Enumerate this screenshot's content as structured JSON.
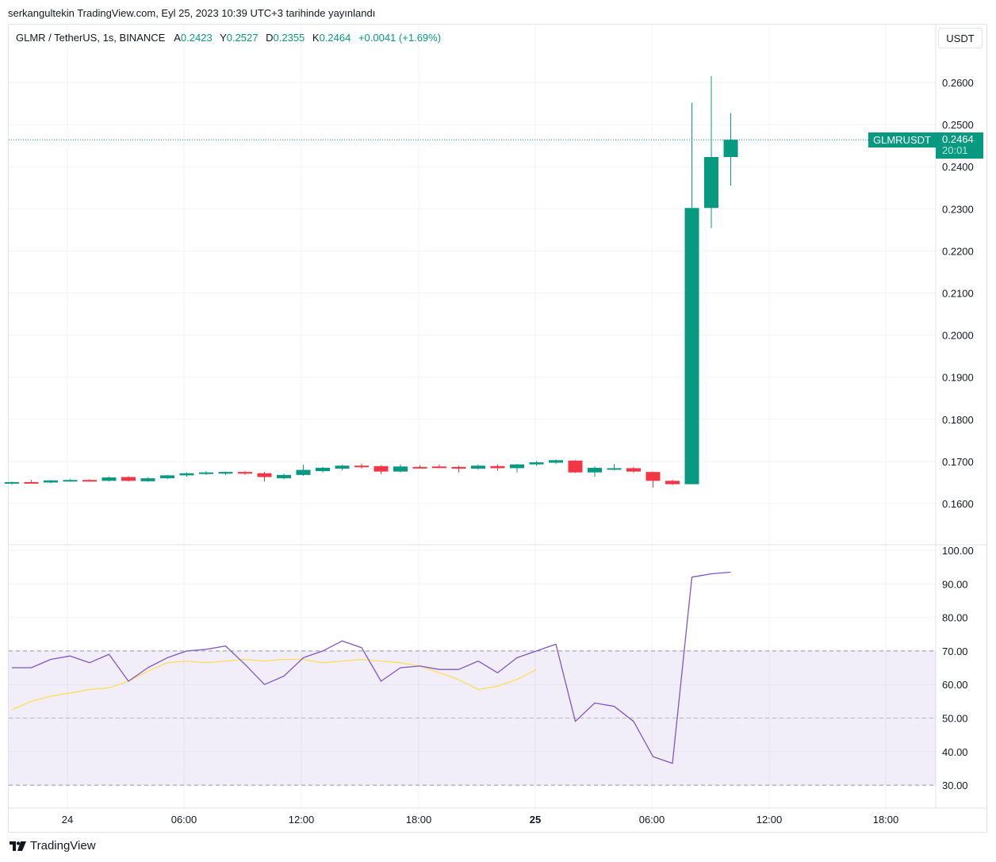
{
  "publish_line": "serkangultekin TradingView.com, Eyl 25, 2023 10:39 UTC+3 tarihinde yayınlandı",
  "legend": {
    "symbol": "GLMR / TetherUS, 1s, BINANCE",
    "open_label": "A",
    "open": "0.2423",
    "high_label": "Y",
    "high": "0.2527",
    "low_label": "D",
    "low": "0.2355",
    "close_label": "K",
    "close": "0.2464",
    "change": "+0.0041 (+1.69%)"
  },
  "currency_button": "USDT",
  "last_price": {
    "ticker": "GLMRUSDT",
    "price": "0.2464",
    "countdown": "20:01"
  },
  "brand": "TradingView",
  "colors": {
    "up": "#089981",
    "down": "#f23645",
    "rsi": "#7e57c2",
    "rsi_ma": "#fddd5b",
    "rsi_band": "#7e57c2"
  },
  "chart_data": [
    {
      "type": "candlestick",
      "x_tick_labels": [
        "24",
        "06:00",
        "12:00",
        "18:00",
        "25",
        "06:00",
        "12:00",
        "18:00"
      ],
      "y_tick_labels": [
        "0.2600",
        "0.2500",
        "0.2400",
        "0.2300",
        "0.2200",
        "0.2100",
        "0.2000",
        "0.1900",
        "0.1800",
        "0.1700",
        "0.1600"
      ],
      "ylim": [
        0.1545,
        0.2705
      ],
      "grid": true,
      "last_price": 0.2464,
      "candles": [
        {
          "o": 0.1648,
          "h": 0.1652,
          "l": 0.1645,
          "c": 0.1651
        },
        {
          "o": 0.1651,
          "h": 0.1656,
          "l": 0.1648,
          "c": 0.165
        },
        {
          "o": 0.165,
          "h": 0.1656,
          "l": 0.1648,
          "c": 0.1655
        },
        {
          "o": 0.1654,
          "h": 0.1658,
          "l": 0.1652,
          "c": 0.1656
        },
        {
          "o": 0.1656,
          "h": 0.1658,
          "l": 0.1652,
          "c": 0.1654
        },
        {
          "o": 0.1654,
          "h": 0.1664,
          "l": 0.1652,
          "c": 0.1662
        },
        {
          "o": 0.1663,
          "h": 0.1665,
          "l": 0.1652,
          "c": 0.1654
        },
        {
          "o": 0.1653,
          "h": 0.1662,
          "l": 0.1652,
          "c": 0.166
        },
        {
          "o": 0.166,
          "h": 0.1668,
          "l": 0.1658,
          "c": 0.1667
        },
        {
          "o": 0.1667,
          "h": 0.1674,
          "l": 0.1664,
          "c": 0.1672
        },
        {
          "o": 0.1672,
          "h": 0.1677,
          "l": 0.1668,
          "c": 0.1674
        },
        {
          "o": 0.1671,
          "h": 0.1676,
          "l": 0.1668,
          "c": 0.1675
        },
        {
          "o": 0.1675,
          "h": 0.1677,
          "l": 0.1668,
          "c": 0.1671
        },
        {
          "o": 0.1672,
          "h": 0.1675,
          "l": 0.1652,
          "c": 0.1663
        },
        {
          "o": 0.166,
          "h": 0.1671,
          "l": 0.1658,
          "c": 0.1668
        },
        {
          "o": 0.1668,
          "h": 0.1692,
          "l": 0.1666,
          "c": 0.168
        },
        {
          "o": 0.1677,
          "h": 0.1687,
          "l": 0.1674,
          "c": 0.1685
        },
        {
          "o": 0.1683,
          "h": 0.1692,
          "l": 0.1679,
          "c": 0.169
        },
        {
          "o": 0.169,
          "h": 0.1695,
          "l": 0.1683,
          "c": 0.1688
        },
        {
          "o": 0.1689,
          "h": 0.1691,
          "l": 0.167,
          "c": 0.1676
        },
        {
          "o": 0.1676,
          "h": 0.1693,
          "l": 0.1674,
          "c": 0.1688
        },
        {
          "o": 0.1687,
          "h": 0.1691,
          "l": 0.1684,
          "c": 0.1686
        },
        {
          "o": 0.1688,
          "h": 0.1693,
          "l": 0.1684,
          "c": 0.1685
        },
        {
          "o": 0.1687,
          "h": 0.169,
          "l": 0.1674,
          "c": 0.1683
        },
        {
          "o": 0.1683,
          "h": 0.1693,
          "l": 0.168,
          "c": 0.169
        },
        {
          "o": 0.1689,
          "h": 0.1693,
          "l": 0.1678,
          "c": 0.1684
        },
        {
          "o": 0.1684,
          "h": 0.1694,
          "l": 0.1674,
          "c": 0.1693
        },
        {
          "o": 0.1693,
          "h": 0.1701,
          "l": 0.169,
          "c": 0.1698
        },
        {
          "o": 0.1697,
          "h": 0.1705,
          "l": 0.1694,
          "c": 0.1703
        },
        {
          "o": 0.1702,
          "h": 0.1703,
          "l": 0.1673,
          "c": 0.1674
        },
        {
          "o": 0.1674,
          "h": 0.1688,
          "l": 0.1664,
          "c": 0.1685
        },
        {
          "o": 0.1683,
          "h": 0.1694,
          "l": 0.1679,
          "c": 0.1684
        },
        {
          "o": 0.1684,
          "h": 0.1687,
          "l": 0.1673,
          "c": 0.1676
        },
        {
          "o": 0.1675,
          "h": 0.1676,
          "l": 0.1638,
          "c": 0.1654
        },
        {
          "o": 0.1654,
          "h": 0.1657,
          "l": 0.1644,
          "c": 0.1646
        },
        {
          "o": 0.1646,
          "h": 0.2552,
          "l": 0.1646,
          "c": 0.2302
        },
        {
          "o": 0.2302,
          "h": 0.2615,
          "l": 0.2254,
          "c": 0.2423
        },
        {
          "o": 0.2423,
          "h": 0.2527,
          "l": 0.2355,
          "c": 0.2464
        }
      ]
    },
    {
      "type": "line",
      "x_tick_labels": [
        "24",
        "06:00",
        "12:00",
        "18:00",
        "25",
        "06:00",
        "12:00",
        "18:00"
      ],
      "y_tick_labels": [
        "100.00",
        "90.00",
        "80.00",
        "70.00",
        "60.00",
        "50.00",
        "40.00",
        "30.00"
      ],
      "ylim": [
        28,
        100
      ],
      "bands": [
        70,
        50,
        30
      ],
      "series": [
        {
          "values": [
            65,
            65,
            67.5,
            68.5,
            66.5,
            69,
            61,
            65,
            68,
            70,
            70.5,
            71.5,
            66,
            60,
            62.5,
            68,
            70,
            73,
            71,
            61,
            65,
            65.5,
            64.5,
            64.5,
            67,
            63.5,
            68,
            70,
            72,
            49,
            54.5,
            53.5,
            49,
            38.5,
            36.5,
            92,
            93,
            93.5
          ]
        },
        {
          "values": [
            52.5,
            55,
            56.5,
            57.5,
            58.5,
            59,
            61,
            64,
            66.5,
            67,
            66.5,
            67,
            67.5,
            67,
            67.5,
            67.5,
            66.5,
            67,
            67.5,
            67,
            66.5,
            65.5,
            63.5,
            61.5,
            58.5,
            59.5,
            61.5,
            64.5
          ]
        }
      ]
    }
  ]
}
